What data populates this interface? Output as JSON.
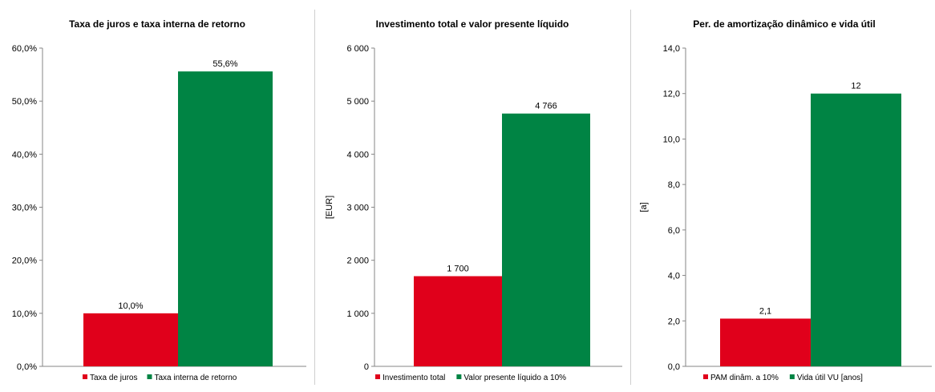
{
  "colors": {
    "red": "#e0001b",
    "green": "#008444",
    "axis": "#868686"
  },
  "chart_data": [
    {
      "type": "bar",
      "title": "Taxa de juros e taxa interna de retorno",
      "ylabel": "",
      "ylim": [
        0,
        60
      ],
      "yticks": [
        0,
        10,
        20,
        30,
        40,
        50,
        60
      ],
      "ytick_labels": [
        "0,0%",
        "10,0%",
        "20,0%",
        "30,0%",
        "40,0%",
        "50,0%",
        "60,0%"
      ],
      "series": [
        {
          "name": "Taxa de juros",
          "value": 10.0,
          "label": "10,0%",
          "color": "#e0001b"
        },
        {
          "name": "Taxa interna de retorno",
          "value": 55.6,
          "label": "55,6%",
          "color": "#008444"
        }
      ],
      "legend": "bottom",
      "grid": false
    },
    {
      "type": "bar",
      "title": "Investimento total e valor presente líquido",
      "ylabel": "[EUR]",
      "ylim": [
        0,
        6000
      ],
      "yticks": [
        0,
        1000,
        2000,
        3000,
        4000,
        5000,
        6000
      ],
      "ytick_labels": [
        "0",
        "1 000",
        "2 000",
        "3 000",
        "4 000",
        "5 000",
        "6 000"
      ],
      "series": [
        {
          "name": "Investimento total",
          "value": 1700,
          "label": "1 700",
          "color": "#e0001b"
        },
        {
          "name": "Valor presente líquido a 10%",
          "value": 4766,
          "label": "4 766",
          "color": "#008444"
        }
      ],
      "legend": "bottom",
      "grid": false
    },
    {
      "type": "bar",
      "title": "Per. de amortização dinâmico e vida útil",
      "ylabel": "[a]",
      "ylim": [
        0,
        14
      ],
      "yticks": [
        0,
        2,
        4,
        6,
        8,
        10,
        12,
        14
      ],
      "ytick_labels": [
        "0,0",
        "2,0",
        "4,0",
        "6,0",
        "8,0",
        "10,0",
        "12,0",
        "14,0"
      ],
      "series": [
        {
          "name": "PAM dinâm. a 10%",
          "value": 2.1,
          "label": "2,1",
          "color": "#e0001b"
        },
        {
          "name": "Vida útil VU [anos]",
          "value": 12,
          "label": "12",
          "color": "#008444"
        }
      ],
      "legend": "bottom",
      "grid": false
    }
  ]
}
